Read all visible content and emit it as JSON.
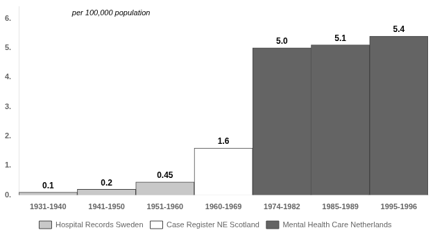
{
  "chart_data": {
    "type": "bar",
    "categories": [
      "1931-1940",
      "1941-1950",
      "1951-1960",
      "1960-1969",
      "1974-1982",
      "1985-1989",
      "1995-1996"
    ],
    "series": [
      {
        "name": "Hospital Records Sweden",
        "color": "#c8c8c8",
        "values": [
          0.1,
          0.2,
          0.45,
          null,
          null,
          null,
          null
        ],
        "value_labels": [
          "0.1",
          "0.2",
          "0.45",
          null,
          null,
          null,
          null
        ]
      },
      {
        "name": "Case Register NE Scotland",
        "color": "#ffffff",
        "values": [
          null,
          null,
          null,
          1.6,
          null,
          null,
          null
        ],
        "value_labels": [
          null,
          null,
          null,
          "1.6",
          null,
          null,
          null
        ]
      },
      {
        "name": "Mental Health Care Netherlands",
        "color": "#646464",
        "values": [
          null,
          null,
          null,
          null,
          5.0,
          5.1,
          5.4
        ],
        "value_labels": [
          null,
          null,
          null,
          null,
          "5.0",
          "5.1",
          "5.4"
        ]
      }
    ],
    "annotation": "per 100,000 population",
    "ylim": [
      0,
      6.4
    ],
    "yticks": [
      {
        "value": 0,
        "label": "0."
      },
      {
        "value": 1,
        "label": "1."
      },
      {
        "value": 2,
        "label": "2."
      },
      {
        "value": 3,
        "label": "3."
      },
      {
        "value": 4,
        "label": "4."
      },
      {
        "value": 5,
        "label": "5."
      },
      {
        "value": 6,
        "label": "6."
      }
    ],
    "grid": false,
    "legend": "bottom",
    "data_labels": true
  }
}
